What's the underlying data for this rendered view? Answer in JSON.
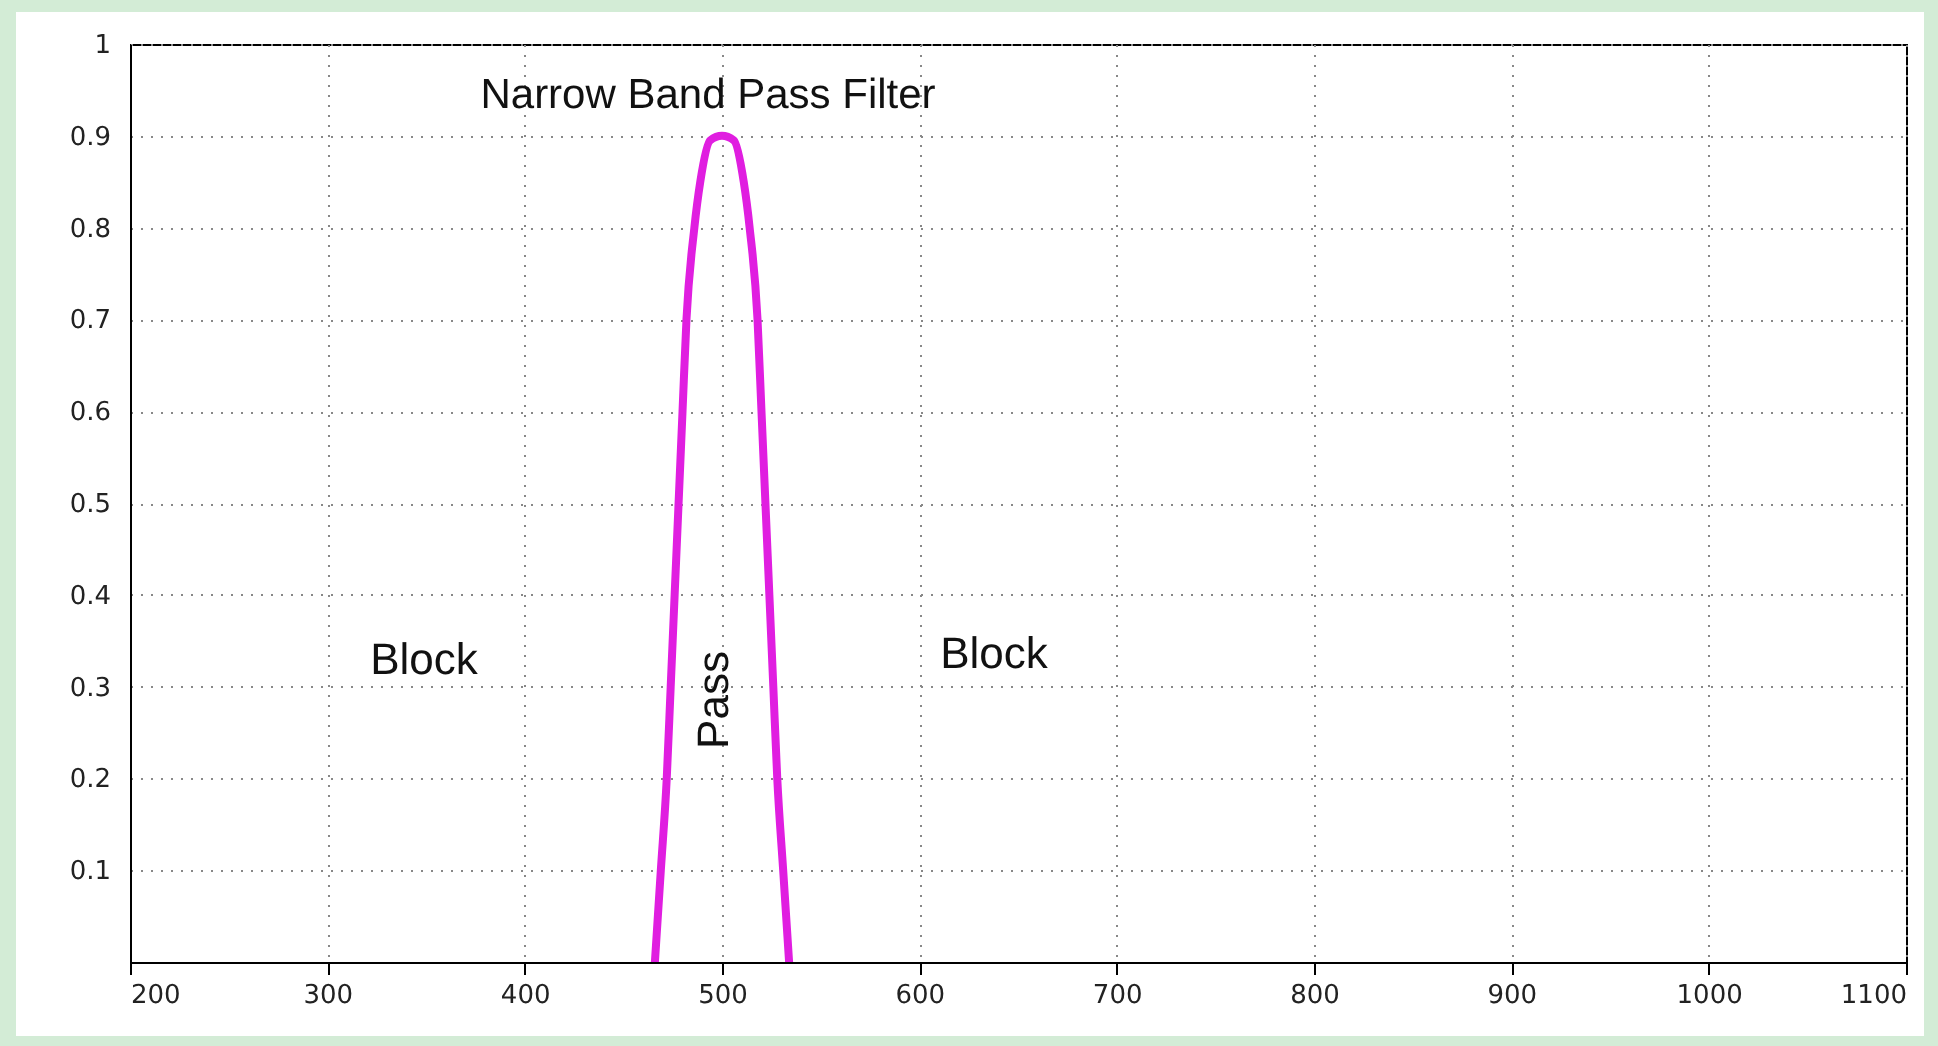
{
  "chart_data": {
    "type": "line",
    "title": "Narrow Band Pass Filter",
    "x": [
      466,
      469,
      472,
      474,
      476,
      478,
      480,
      482,
      486,
      489,
      494,
      500,
      506,
      511,
      514,
      518,
      520,
      522,
      524,
      526,
      528,
      531,
      534
    ],
    "series": [
      {
        "color": "#e01ee0",
        "values": [
          0,
          0.1,
          0.2,
          0.3,
          0.4,
          0.5,
          0.6,
          0.7,
          0.8,
          0.85,
          0.895,
          0.9,
          0.895,
          0.85,
          0.8,
          0.7,
          0.6,
          0.5,
          0.4,
          0.3,
          0.2,
          0.1,
          0
        ]
      }
    ],
    "xlim": [
      200,
      1100
    ],
    "ylim": [
      0,
      1
    ],
    "xticks": [
      200,
      300,
      400,
      500,
      600,
      700,
      800,
      900,
      1000,
      1100
    ],
    "yticks": [
      0.1,
      0.2,
      0.3,
      0.4,
      0.5,
      0.6,
      0.7,
      0.8,
      0.9,
      1
    ],
    "grid": true,
    "annotations": [
      "Block",
      "Pass",
      "Block"
    ]
  }
}
